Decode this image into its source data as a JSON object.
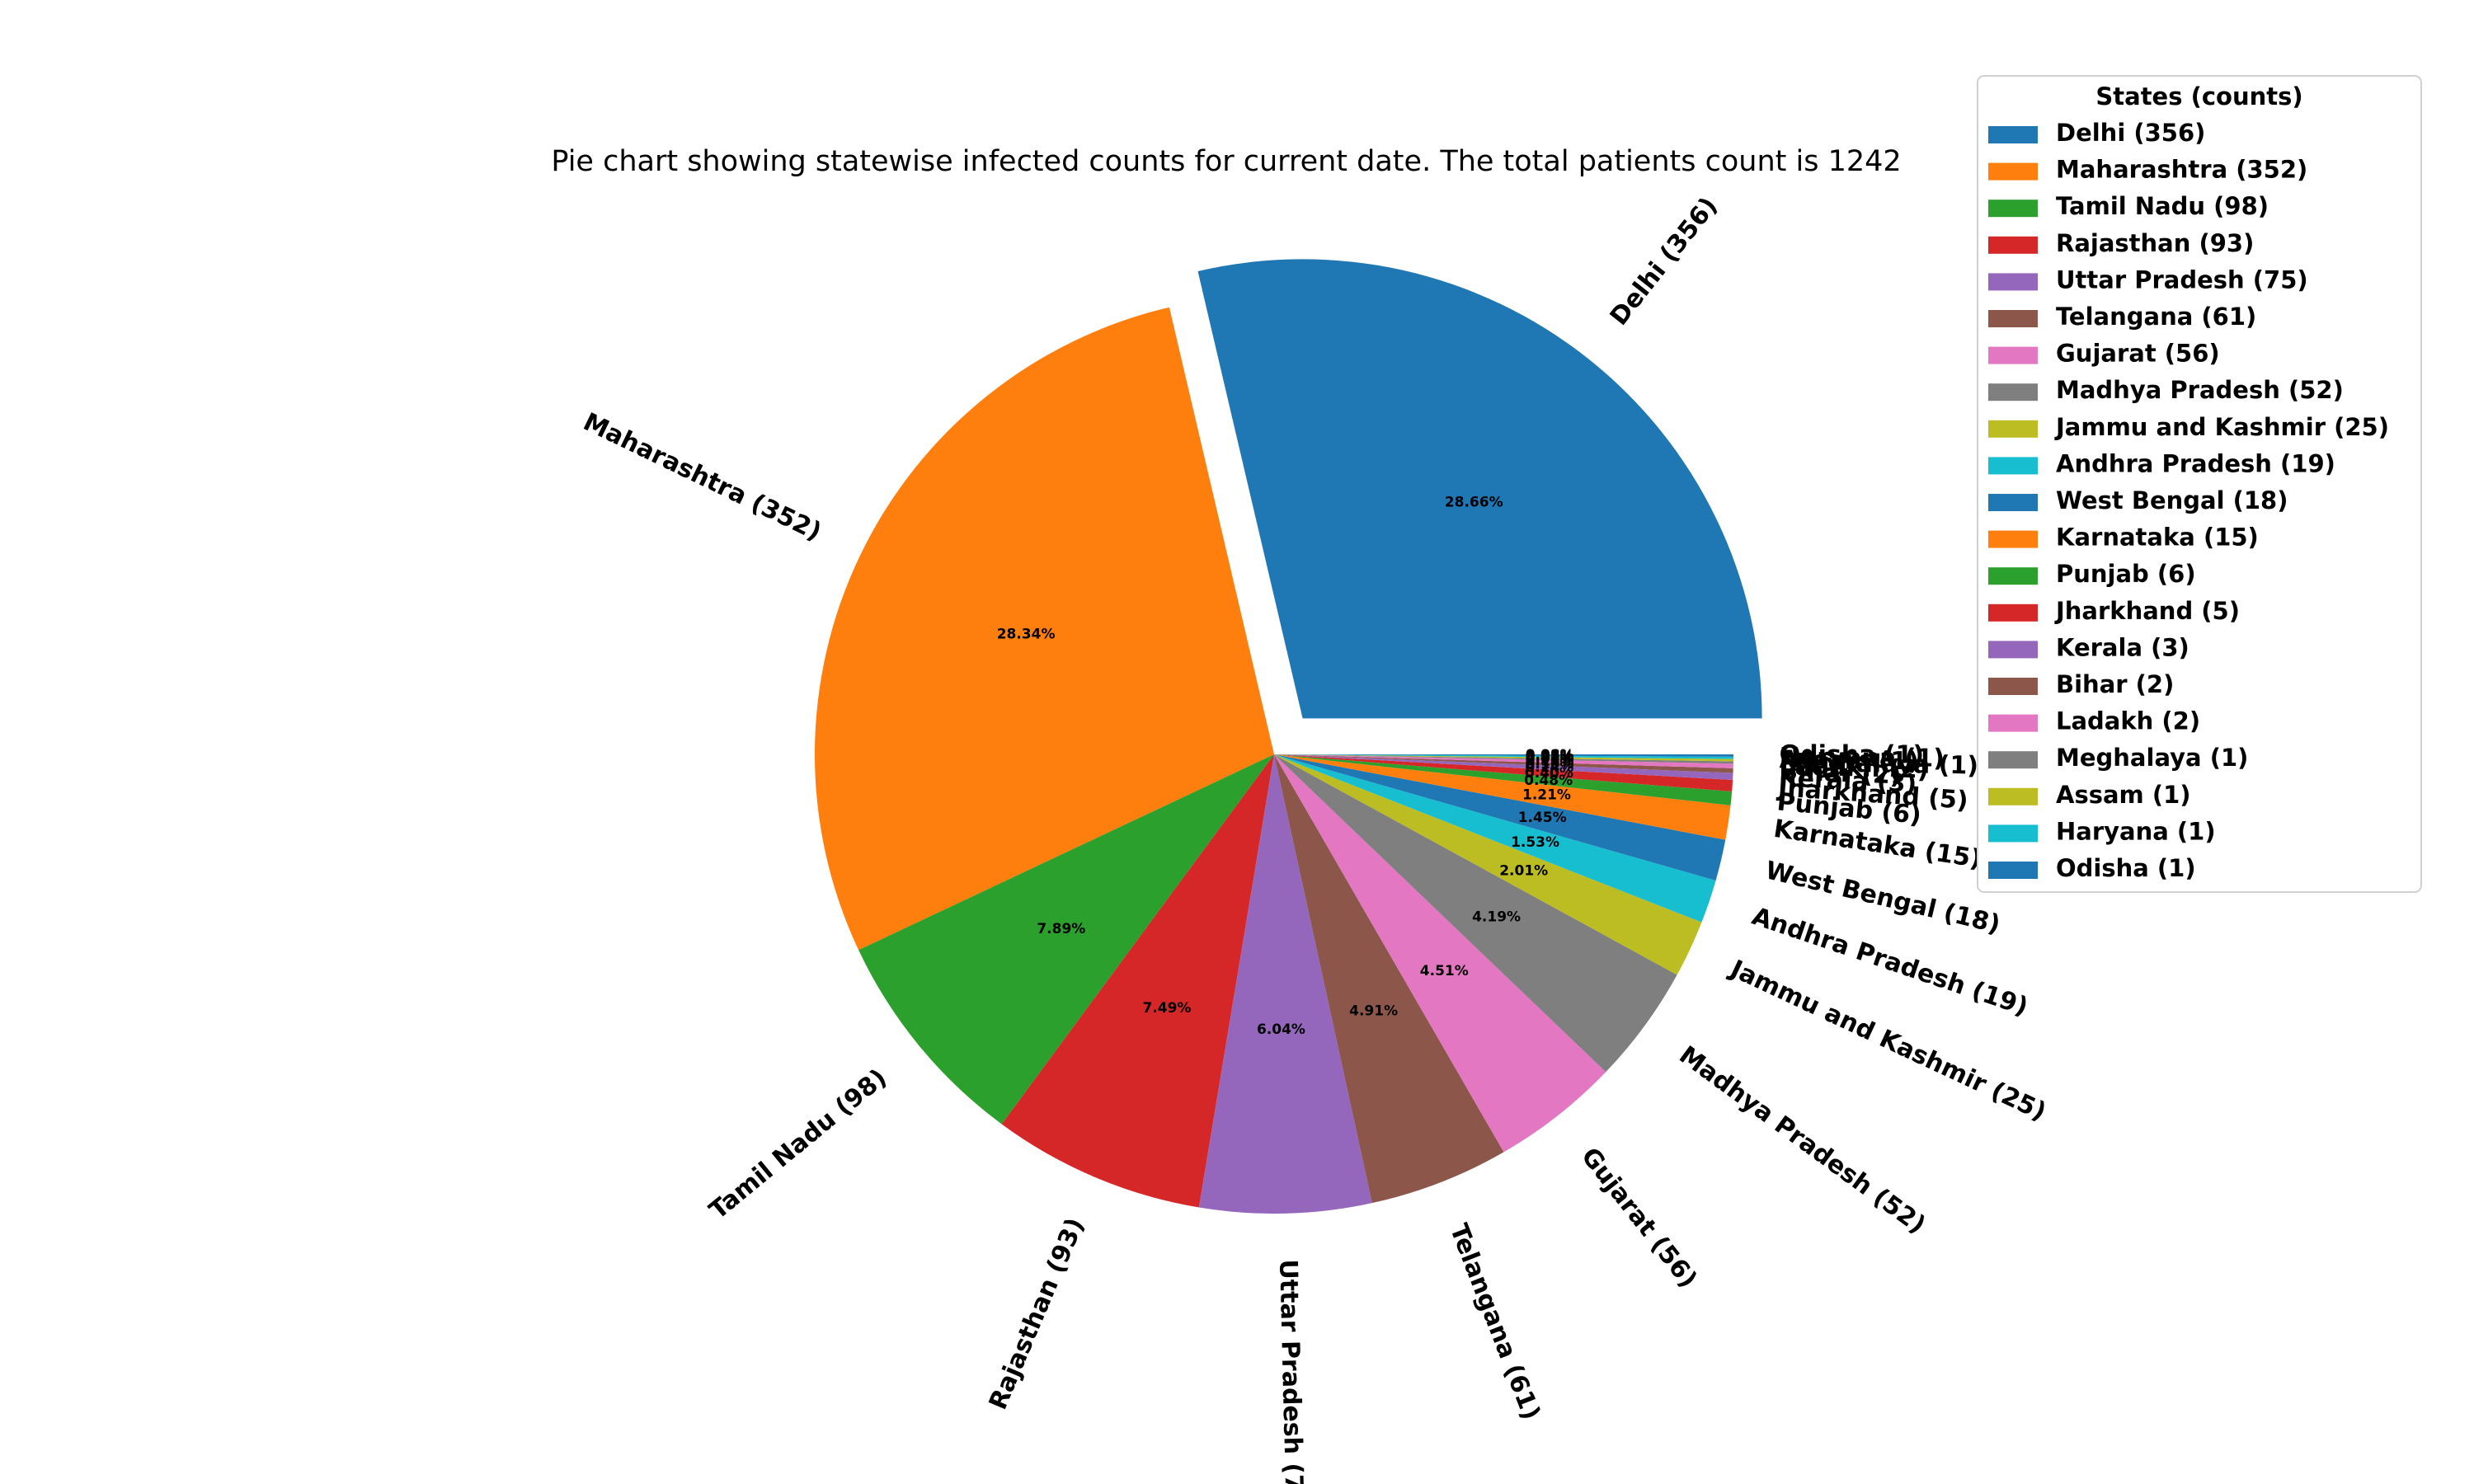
{
  "chart_data": {
    "type": "pie",
    "title": "Pie chart showing statewise infected counts for current date. The total patients count is 1242",
    "legend_title": "States (counts)",
    "legend_placement": "top-right",
    "exploded_slice": "Delhi (356)",
    "slices": [
      {
        "label": "Delhi (356)",
        "value": 356,
        "percent": "28.66%",
        "color": "#1f77b4"
      },
      {
        "label": "Maharashtra (352)",
        "value": 352,
        "percent": "28.34%",
        "color": "#ff7f0e"
      },
      {
        "label": "Tamil Nadu (98)",
        "value": 98,
        "percent": "7.89%",
        "color": "#2ca02c"
      },
      {
        "label": "Rajasthan (93)",
        "value": 93,
        "percent": "7.49%",
        "color": "#d62728"
      },
      {
        "label": "Uttar Pradesh (75)",
        "value": 75,
        "percent": "6.04%",
        "color": "#9467bd"
      },
      {
        "label": "Telangana (61)",
        "value": 61,
        "percent": "4.91%",
        "color": "#8c564b"
      },
      {
        "label": "Gujarat (56)",
        "value": 56,
        "percent": "4.51%",
        "color": "#e377c2"
      },
      {
        "label": "Madhya Pradesh (52)",
        "value": 52,
        "percent": "4.19%",
        "color": "#7f7f7f"
      },
      {
        "label": "Jammu and Kashmir (25)",
        "value": 25,
        "percent": "2.01%",
        "color": "#bcbd22"
      },
      {
        "label": "Andhra Pradesh (19)",
        "value": 19,
        "percent": "1.53%",
        "color": "#17becf"
      },
      {
        "label": "West Bengal (18)",
        "value": 18,
        "percent": "1.45%",
        "color": "#1f77b4"
      },
      {
        "label": "Karnataka (15)",
        "value": 15,
        "percent": "1.21%",
        "color": "#ff7f0e"
      },
      {
        "label": "Punjab (6)",
        "value": 6,
        "percent": "0.48%",
        "color": "#2ca02c"
      },
      {
        "label": "Jharkhand (5)",
        "value": 5,
        "percent": "0.40%",
        "color": "#d62728"
      },
      {
        "label": "Kerala (3)",
        "value": 3,
        "percent": "0.24%",
        "color": "#9467bd"
      },
      {
        "label": "Bihar (2)",
        "value": 2,
        "percent": "0.16%",
        "color": "#8c564b"
      },
      {
        "label": "Ladakh (2)",
        "value": 2,
        "percent": "0.16%",
        "color": "#e377c2"
      },
      {
        "label": "Meghalaya (1)",
        "value": 1,
        "percent": "0.08%",
        "color": "#7f7f7f"
      },
      {
        "label": "Assam (1)",
        "value": 1,
        "percent": "0.08%",
        "color": "#bcbd22"
      },
      {
        "label": "Haryana (1)",
        "value": 1,
        "percent": "0.08%",
        "color": "#17becf"
      },
      {
        "label": "Odisha (1)",
        "value": 1,
        "percent": "0.08%",
        "color": "#1f77b4"
      }
    ]
  }
}
